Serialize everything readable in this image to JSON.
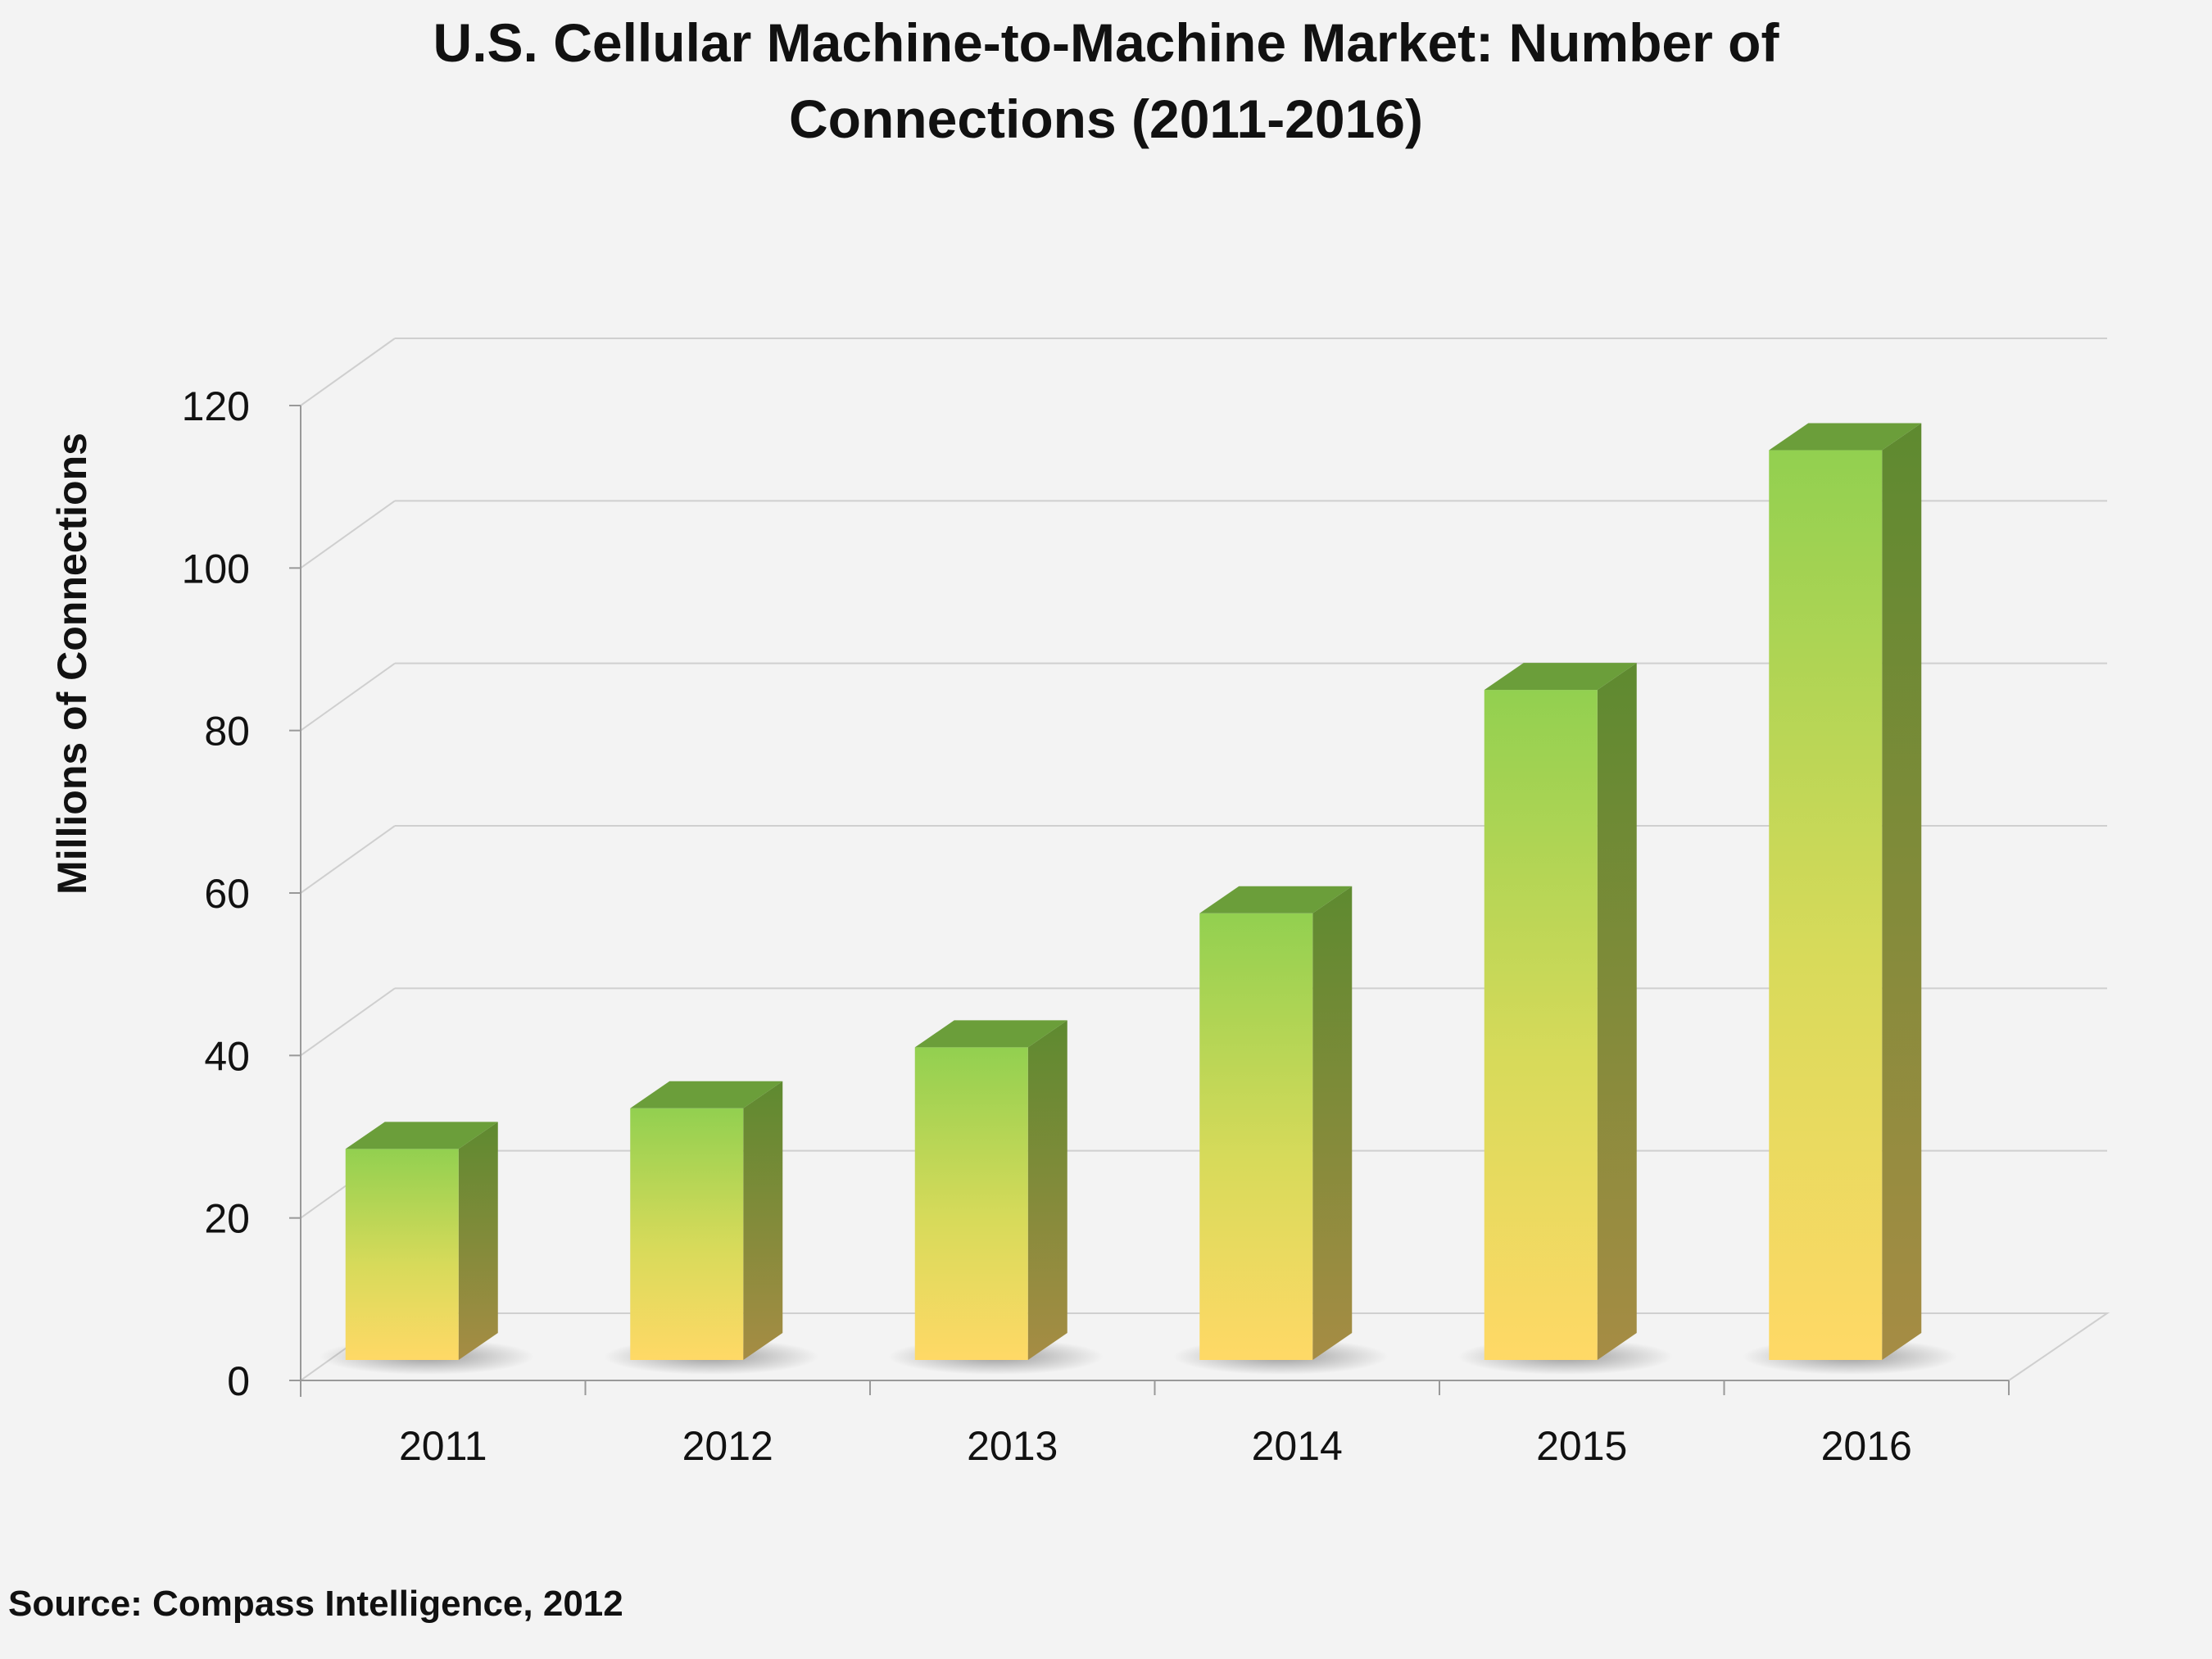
{
  "chart_data": {
    "type": "bar",
    "title": "U.S. Cellular Machine-to-Machine Market: Number of Connections (2011-2016)",
    "title_lines": [
      "U.S. Cellular Machine-to-Machine Market: Number of",
      "Connections (2011-2016)"
    ],
    "ylabel": "Millions of Connections",
    "xlabel": "",
    "categories": [
      "2011",
      "2012",
      "2013",
      "2014",
      "2015",
      "2016"
    ],
    "values": [
      28.5,
      33.5,
      41,
      57.5,
      85,
      114.5
    ],
    "ylim": [
      0,
      120
    ],
    "yticks": [
      0,
      20,
      40,
      60,
      80,
      100,
      120
    ],
    "grid": true,
    "style": "3d-column",
    "colors": {
      "bar_top": "#92d050",
      "bar_bottom": "#ffd966",
      "bar_cap": "#6b9e3a",
      "bar_side_top": "#5e8a30",
      "bar_side_bottom": "#a68c44"
    }
  },
  "source": "Source: Compass Intelligence, 2012"
}
